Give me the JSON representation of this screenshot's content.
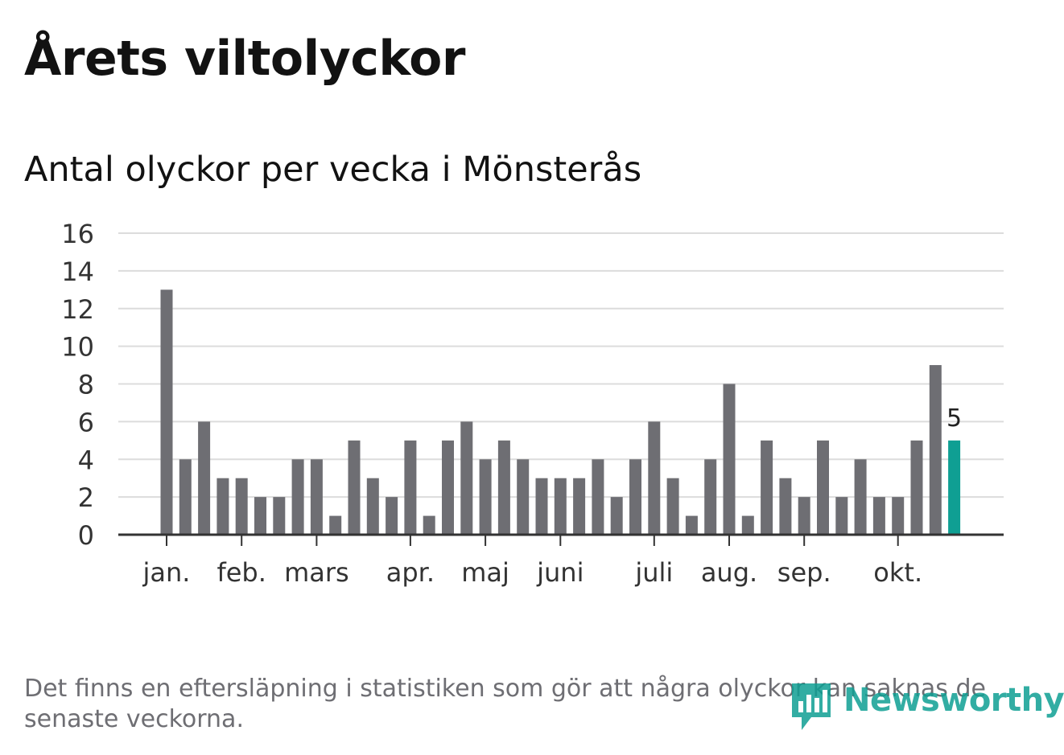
{
  "chart_data": {
    "type": "bar",
    "title": "Årets viltolyckor",
    "subtitle": "Antal olyckor per vecka i Mönsterås",
    "xlabel": "",
    "ylabel": "",
    "ylim": [
      0,
      16
    ],
    "yticks": [
      0,
      2,
      4,
      6,
      8,
      10,
      12,
      14,
      16
    ],
    "month_labels": [
      {
        "label": "jan.",
        "week": 1
      },
      {
        "label": "feb.",
        "week": 5
      },
      {
        "label": "mars",
        "week": 9
      },
      {
        "label": "apr.",
        "week": 14
      },
      {
        "label": "maj",
        "week": 18
      },
      {
        "label": "juni",
        "week": 22
      },
      {
        "label": "juli",
        "week": 27
      },
      {
        "label": "aug.",
        "week": 31
      },
      {
        "label": "sep.",
        "week": 35
      },
      {
        "label": "okt.",
        "week": 40
      }
    ],
    "weeks": [
      1,
      2,
      3,
      4,
      5,
      6,
      7,
      8,
      9,
      10,
      11,
      12,
      13,
      14,
      15,
      16,
      17,
      18,
      19,
      20,
      21,
      22,
      23,
      24,
      25,
      26,
      27,
      28,
      29,
      30,
      31,
      32,
      33,
      34,
      35,
      36,
      37,
      38,
      39,
      40,
      41,
      42,
      43
    ],
    "values": [
      13,
      4,
      6,
      3,
      3,
      2,
      2,
      4,
      4,
      1,
      5,
      3,
      2,
      5,
      1,
      5,
      6,
      4,
      5,
      4,
      3,
      3,
      3,
      4,
      2,
      4,
      6,
      3,
      1,
      4,
      8,
      1,
      5,
      3,
      2,
      5,
      2,
      4,
      2,
      2,
      5,
      9,
      5
    ],
    "highlight_index": 42,
    "highlight_label": "5",
    "colors": {
      "bar": "#6e6e73",
      "highlight": "#0f9f93",
      "grid": "#dcdcdc",
      "axis": "#333333"
    }
  },
  "footnote": "Det finns en eftersläpning i statistiken som gör att några olyckor kan saknas de senaste veckorna.",
  "logo": {
    "text": "Newsworthy",
    "icon": "newsworthy-logo-icon"
  }
}
